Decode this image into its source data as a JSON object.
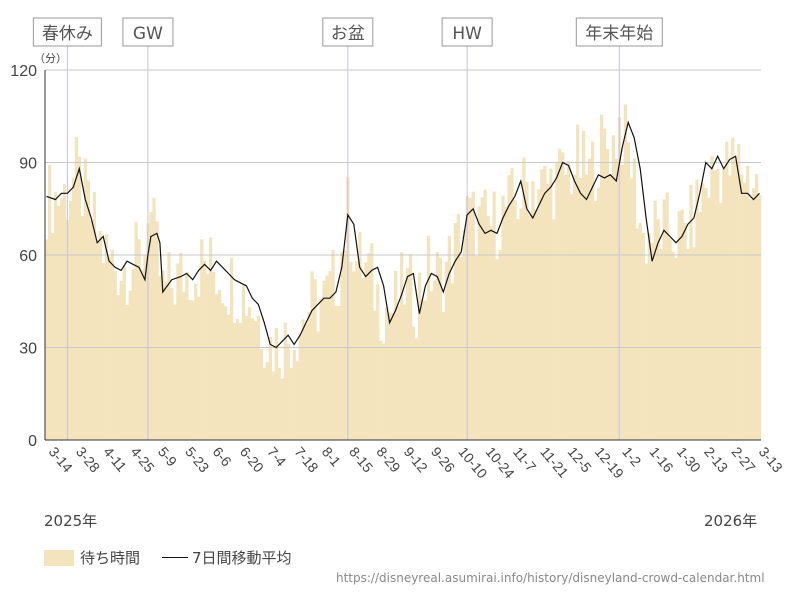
{
  "chart_data": {
    "type": "bar",
    "y_unit": "（分）",
    "ylim": [
      0,
      120
    ],
    "y_ticks": [
      0,
      30,
      60,
      90,
      120
    ],
    "grid": true,
    "x_tick_labels": [
      "3-14",
      "3-28",
      "4-11",
      "4-25",
      "5-9",
      "5-23",
      "6-6",
      "6-20",
      "7-4",
      "7-18",
      "8-1",
      "8-15",
      "8-29",
      "9-12",
      "9-26",
      "10-10",
      "10-24",
      "11-7",
      "11-21",
      "12-5",
      "12-19",
      "1-2",
      "1-16",
      "1-30",
      "2-13",
      "2-27",
      "3-13"
    ],
    "year_labels": [
      "2025年",
      "2026年"
    ],
    "events": [
      {
        "label": "春休み",
        "day": 7
      },
      {
        "label": "GW",
        "day": 34
      },
      {
        "label": "お盆",
        "day": 101
      },
      {
        "label": "HW",
        "day": 141
      },
      {
        "label": "年末年始",
        "day": 192
      }
    ],
    "series": [
      {
        "name": "待ち時間",
        "type": "bar",
        "color": "#f3e4bd",
        "anchors": [
          [
            0,
            78
          ],
          [
            7,
            80
          ],
          [
            10,
            86
          ],
          [
            14,
            76
          ],
          [
            17,
            66
          ],
          [
            21,
            58
          ],
          [
            25,
            56
          ],
          [
            30,
            58
          ],
          [
            33,
            62
          ],
          [
            34,
            78
          ],
          [
            36,
            66
          ],
          [
            39,
            48
          ],
          [
            45,
            53
          ],
          [
            52,
            57
          ],
          [
            55,
            56
          ],
          [
            60,
            52
          ],
          [
            64,
            50
          ],
          [
            68,
            46
          ],
          [
            72,
            38
          ],
          [
            75,
            31
          ],
          [
            80,
            32
          ],
          [
            84,
            36
          ],
          [
            88,
            43
          ],
          [
            94,
            46
          ],
          [
            98,
            55
          ],
          [
            101,
            74
          ],
          [
            104,
            58
          ],
          [
            108,
            55
          ],
          [
            112,
            44
          ],
          [
            116,
            42
          ],
          [
            120,
            50
          ],
          [
            124,
            46
          ],
          [
            128,
            55
          ],
          [
            132,
            52
          ],
          [
            136,
            60
          ],
          [
            141,
            72
          ],
          [
            145,
            70
          ],
          [
            150,
            70
          ],
          [
            154,
            75
          ],
          [
            158,
            78
          ],
          [
            162,
            84
          ],
          [
            166,
            82
          ],
          [
            170,
            84
          ],
          [
            174,
            86
          ],
          [
            178,
            90
          ],
          [
            182,
            86
          ],
          [
            186,
            95
          ],
          [
            190,
            96
          ],
          [
            192,
            103
          ],
          [
            196,
            90
          ],
          [
            200,
            65
          ],
          [
            204,
            68
          ],
          [
            208,
            68
          ],
          [
            212,
            66
          ],
          [
            216,
            70
          ],
          [
            220,
            80
          ],
          [
            224,
            88
          ],
          [
            228,
            88
          ],
          [
            232,
            90
          ],
          [
            236,
            85
          ],
          [
            239,
            82
          ]
        ]
      },
      {
        "name": "7日間移動平均",
        "type": "line",
        "color": "#111111",
        "anchors": [
          [
            0,
            79
          ],
          [
            3,
            78
          ],
          [
            5,
            80
          ],
          [
            7,
            80
          ],
          [
            9,
            82
          ],
          [
            11,
            88
          ],
          [
            13,
            78
          ],
          [
            15,
            72
          ],
          [
            17,
            64
          ],
          [
            19,
            66
          ],
          [
            21,
            58
          ],
          [
            23,
            56
          ],
          [
            25,
            55
          ],
          [
            27,
            58
          ],
          [
            29,
            57
          ],
          [
            31,
            56
          ],
          [
            33,
            52
          ],
          [
            34,
            60
          ],
          [
            35,
            66
          ],
          [
            37,
            67
          ],
          [
            38,
            64
          ],
          [
            39,
            48
          ],
          [
            42,
            52
          ],
          [
            45,
            53
          ],
          [
            47,
            54
          ],
          [
            49,
            52
          ],
          [
            51,
            55
          ],
          [
            53,
            57
          ],
          [
            55,
            55
          ],
          [
            57,
            58
          ],
          [
            59,
            56
          ],
          [
            61,
            54
          ],
          [
            63,
            52
          ],
          [
            65,
            51
          ],
          [
            67,
            50
          ],
          [
            69,
            46
          ],
          [
            71,
            44
          ],
          [
            73,
            38
          ],
          [
            75,
            31
          ],
          [
            77,
            30
          ],
          [
            79,
            32
          ],
          [
            81,
            34
          ],
          [
            83,
            31
          ],
          [
            85,
            34
          ],
          [
            87,
            38
          ],
          [
            89,
            42
          ],
          [
            91,
            44
          ],
          [
            93,
            46
          ],
          [
            95,
            46
          ],
          [
            97,
            48
          ],
          [
            99,
            56
          ],
          [
            101,
            73
          ],
          [
            103,
            70
          ],
          [
            105,
            56
          ],
          [
            107,
            53
          ],
          [
            109,
            55
          ],
          [
            111,
            56
          ],
          [
            113,
            50
          ],
          [
            115,
            38
          ],
          [
            117,
            42
          ],
          [
            119,
            47
          ],
          [
            121,
            53
          ],
          [
            123,
            54
          ],
          [
            125,
            41
          ],
          [
            127,
            50
          ],
          [
            129,
            54
          ],
          [
            131,
            53
          ],
          [
            133,
            48
          ],
          [
            135,
            54
          ],
          [
            137,
            58
          ],
          [
            139,
            61
          ],
          [
            141,
            73
          ],
          [
            143,
            75
          ],
          [
            145,
            70
          ],
          [
            147,
            67
          ],
          [
            149,
            68
          ],
          [
            151,
            67
          ],
          [
            153,
            72
          ],
          [
            155,
            76
          ],
          [
            157,
            79
          ],
          [
            159,
            84
          ],
          [
            161,
            75
          ],
          [
            163,
            72
          ],
          [
            165,
            76
          ],
          [
            167,
            80
          ],
          [
            169,
            82
          ],
          [
            171,
            85
          ],
          [
            173,
            90
          ],
          [
            175,
            89
          ],
          [
            177,
            84
          ],
          [
            179,
            80
          ],
          [
            181,
            78
          ],
          [
            183,
            82
          ],
          [
            185,
            86
          ],
          [
            187,
            85
          ],
          [
            189,
            86
          ],
          [
            191,
            84
          ],
          [
            193,
            95
          ],
          [
            195,
            103
          ],
          [
            197,
            98
          ],
          [
            199,
            88
          ],
          [
            201,
            72
          ],
          [
            203,
            58
          ],
          [
            205,
            64
          ],
          [
            207,
            68
          ],
          [
            209,
            66
          ],
          [
            211,
            64
          ],
          [
            213,
            66
          ],
          [
            215,
            70
          ],
          [
            217,
            72
          ],
          [
            219,
            80
          ],
          [
            221,
            90
          ],
          [
            223,
            88
          ],
          [
            225,
            92
          ],
          [
            227,
            88
          ],
          [
            229,
            91
          ],
          [
            231,
            92
          ],
          [
            233,
            80
          ],
          [
            235,
            80
          ],
          [
            237,
            78
          ],
          [
            239,
            80
          ]
        ]
      }
    ],
    "legend_position": "bottom-left"
  },
  "source_text": "https://disneyreal.asumirai.info/history/disneyland-crowd-calendar.html"
}
